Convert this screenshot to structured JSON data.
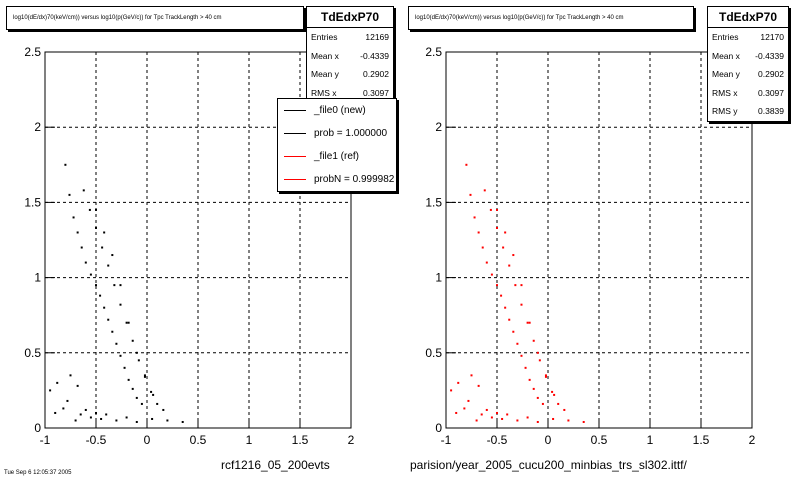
{
  "footnote": "Tue Sep 6 12:05:37 2005",
  "chart_data": [
    {
      "type": "scatter",
      "title": "log10(dE/dx)70(keV/cm)) versus log10(p(GeV/c)) for Tpc TrackLength > 40 cm",
      "xlabel": "",
      "ylabel": "",
      "xlim": [
        -1,
        2
      ],
      "ylim": [
        0,
        2.5
      ],
      "x_ticks": [
        "-1",
        "-0.5",
        "0",
        "0.5",
        "1",
        "1.5",
        "2"
      ],
      "y_ticks": [
        "0",
        "0.5",
        "1",
        "1.5",
        "2",
        "2.5"
      ],
      "grid": true,
      "marker_color": "#000000",
      "caption": "rcf1216_05_200evts",
      "stats": {
        "name": "TdEdxP70",
        "rows": [
          {
            "label": "Entries",
            "value": "12169"
          },
          {
            "label": "Mean x",
            "value": "-0.4339"
          },
          {
            "label": "Mean y",
            "value": "0.2902"
          },
          {
            "label": "RMS x",
            "value": "0.3097"
          }
        ]
      },
      "legend": {
        "placement": "top-right",
        "entries": [
          {
            "label": "_file0 (new)",
            "color": "#000000"
          },
          {
            "label": "prob = 1.000000",
            "color": "#000000"
          },
          {
            "label": "_file1 (ref)",
            "color": "#ff0000"
          },
          {
            "label": "probN = 0.999982",
            "color": "#ff0000"
          }
        ]
      },
      "points": [
        {
          "x": -0.9,
          "y": 0.1
        },
        {
          "x": -0.82,
          "y": 0.13
        },
        {
          "x": -0.78,
          "y": 0.18
        },
        {
          "x": -0.7,
          "y": 0.05
        },
        {
          "x": -0.65,
          "y": 0.09
        },
        {
          "x": -0.6,
          "y": 0.12
        },
        {
          "x": -0.55,
          "y": 0.07
        },
        {
          "x": -0.5,
          "y": 0.1
        },
        {
          "x": -0.45,
          "y": 0.06
        },
        {
          "x": -0.4,
          "y": 0.09
        },
        {
          "x": -0.3,
          "y": 0.05
        },
        {
          "x": -0.2,
          "y": 0.07
        },
        {
          "x": -0.1,
          "y": 0.04
        },
        {
          "x": 0.05,
          "y": 0.06
        },
        {
          "x": 0.2,
          "y": 0.05
        },
        {
          "x": 0.35,
          "y": 0.04
        },
        {
          "x": -0.95,
          "y": 0.25
        },
        {
          "x": -0.88,
          "y": 0.3
        },
        {
          "x": -0.75,
          "y": 0.35
        },
        {
          "x": -0.68,
          "y": 0.28
        },
        {
          "x": -0.8,
          "y": 1.75
        },
        {
          "x": -0.76,
          "y": 1.55
        },
        {
          "x": -0.72,
          "y": 1.4
        },
        {
          "x": -0.68,
          "y": 1.3
        },
        {
          "x": -0.64,
          "y": 1.2
        },
        {
          "x": -0.6,
          "y": 1.1
        },
        {
          "x": -0.55,
          "y": 1.02
        },
        {
          "x": -0.5,
          "y": 0.95
        },
        {
          "x": -0.46,
          "y": 0.88
        },
        {
          "x": -0.42,
          "y": 0.8
        },
        {
          "x": -0.38,
          "y": 0.72
        },
        {
          "x": -0.34,
          "y": 0.64
        },
        {
          "x": -0.3,
          "y": 0.56
        },
        {
          "x": -0.26,
          "y": 0.48
        },
        {
          "x": -0.22,
          "y": 0.4
        },
        {
          "x": -0.18,
          "y": 0.32
        },
        {
          "x": -0.14,
          "y": 0.26
        },
        {
          "x": -0.1,
          "y": 0.2
        },
        {
          "x": -0.05,
          "y": 0.16
        },
        {
          "x": -0.62,
          "y": 1.58
        },
        {
          "x": -0.56,
          "y": 1.45
        },
        {
          "x": -0.5,
          "y": 1.33
        },
        {
          "x": -0.44,
          "y": 1.2
        },
        {
          "x": -0.38,
          "y": 1.08
        },
        {
          "x": -0.32,
          "y": 0.95
        },
        {
          "x": -0.26,
          "y": 0.82
        },
        {
          "x": -0.2,
          "y": 0.7
        },
        {
          "x": -0.14,
          "y": 0.58
        },
        {
          "x": -0.08,
          "y": 0.45
        },
        {
          "x": -0.02,
          "y": 0.34
        },
        {
          "x": 0.04,
          "y": 0.24
        },
        {
          "x": 0.1,
          "y": 0.16
        },
        {
          "x": 0.16,
          "y": 0.12
        },
        {
          "x": -0.5,
          "y": 1.45
        },
        {
          "x": -0.42,
          "y": 1.3
        },
        {
          "x": -0.34,
          "y": 1.15
        },
        {
          "x": -0.26,
          "y": 0.95
        },
        {
          "x": -0.18,
          "y": 0.7
        },
        {
          "x": -0.1,
          "y": 0.5
        },
        {
          "x": -0.02,
          "y": 0.35
        },
        {
          "x": 0.06,
          "y": 0.22
        }
      ]
    },
    {
      "type": "scatter",
      "title": "log10(dE/dx)70(keV/cm)) versus log10(p(GeV/c)) for Tpc TrackLength > 40 cm",
      "xlabel": "",
      "ylabel": "",
      "xlim": [
        -1,
        2
      ],
      "ylim": [
        0,
        2.5
      ],
      "x_ticks": [
        "-1",
        "-0.5",
        "0",
        "0.5",
        "1",
        "1.5",
        "2"
      ],
      "y_ticks": [
        "0",
        "0.5",
        "1",
        "1.5",
        "2",
        "2.5"
      ],
      "grid": true,
      "marker_color": "#ff0000",
      "caption": "parision/year_2005_cucu200_minbias_trs_sl302.ittf/",
      "stats": {
        "name": "TdEdxP70",
        "rows": [
          {
            "label": "Entries",
            "value": "12170"
          },
          {
            "label": "Mean x",
            "value": "-0.4339"
          },
          {
            "label": "Mean y",
            "value": "0.2902"
          },
          {
            "label": "RMS x",
            "value": "0.3097"
          },
          {
            "label": "RMS y",
            "value": "0.3839"
          }
        ]
      },
      "points": [
        {
          "x": -0.9,
          "y": 0.1
        },
        {
          "x": -0.82,
          "y": 0.13
        },
        {
          "x": -0.78,
          "y": 0.18
        },
        {
          "x": -0.7,
          "y": 0.05
        },
        {
          "x": -0.65,
          "y": 0.09
        },
        {
          "x": -0.6,
          "y": 0.12
        },
        {
          "x": -0.55,
          "y": 0.07
        },
        {
          "x": -0.5,
          "y": 0.1
        },
        {
          "x": -0.45,
          "y": 0.06
        },
        {
          "x": -0.4,
          "y": 0.09
        },
        {
          "x": -0.3,
          "y": 0.05
        },
        {
          "x": -0.2,
          "y": 0.07
        },
        {
          "x": -0.1,
          "y": 0.04
        },
        {
          "x": 0.05,
          "y": 0.06
        },
        {
          "x": 0.2,
          "y": 0.05
        },
        {
          "x": 0.35,
          "y": 0.04
        },
        {
          "x": -0.95,
          "y": 0.25
        },
        {
          "x": -0.88,
          "y": 0.3
        },
        {
          "x": -0.75,
          "y": 0.35
        },
        {
          "x": -0.68,
          "y": 0.28
        },
        {
          "x": -0.8,
          "y": 1.75
        },
        {
          "x": -0.76,
          "y": 1.55
        },
        {
          "x": -0.72,
          "y": 1.4
        },
        {
          "x": -0.68,
          "y": 1.3
        },
        {
          "x": -0.64,
          "y": 1.2
        },
        {
          "x": -0.6,
          "y": 1.1
        },
        {
          "x": -0.55,
          "y": 1.02
        },
        {
          "x": -0.5,
          "y": 0.95
        },
        {
          "x": -0.46,
          "y": 0.88
        },
        {
          "x": -0.42,
          "y": 0.8
        },
        {
          "x": -0.38,
          "y": 0.72
        },
        {
          "x": -0.34,
          "y": 0.64
        },
        {
          "x": -0.3,
          "y": 0.56
        },
        {
          "x": -0.26,
          "y": 0.48
        },
        {
          "x": -0.22,
          "y": 0.4
        },
        {
          "x": -0.18,
          "y": 0.32
        },
        {
          "x": -0.14,
          "y": 0.26
        },
        {
          "x": -0.1,
          "y": 0.2
        },
        {
          "x": -0.05,
          "y": 0.16
        },
        {
          "x": -0.62,
          "y": 1.58
        },
        {
          "x": -0.56,
          "y": 1.45
        },
        {
          "x": -0.5,
          "y": 1.33
        },
        {
          "x": -0.44,
          "y": 1.2
        },
        {
          "x": -0.38,
          "y": 1.08
        },
        {
          "x": -0.32,
          "y": 0.95
        },
        {
          "x": -0.26,
          "y": 0.82
        },
        {
          "x": -0.2,
          "y": 0.7
        },
        {
          "x": -0.14,
          "y": 0.58
        },
        {
          "x": -0.08,
          "y": 0.45
        },
        {
          "x": -0.02,
          "y": 0.34
        },
        {
          "x": 0.04,
          "y": 0.24
        },
        {
          "x": 0.1,
          "y": 0.16
        },
        {
          "x": 0.16,
          "y": 0.12
        },
        {
          "x": -0.5,
          "y": 1.45
        },
        {
          "x": -0.42,
          "y": 1.3
        },
        {
          "x": -0.34,
          "y": 1.15
        },
        {
          "x": -0.26,
          "y": 0.95
        },
        {
          "x": -0.18,
          "y": 0.7
        },
        {
          "x": -0.1,
          "y": 0.5
        },
        {
          "x": -0.02,
          "y": 0.35
        },
        {
          "x": 0.06,
          "y": 0.22
        }
      ]
    }
  ]
}
